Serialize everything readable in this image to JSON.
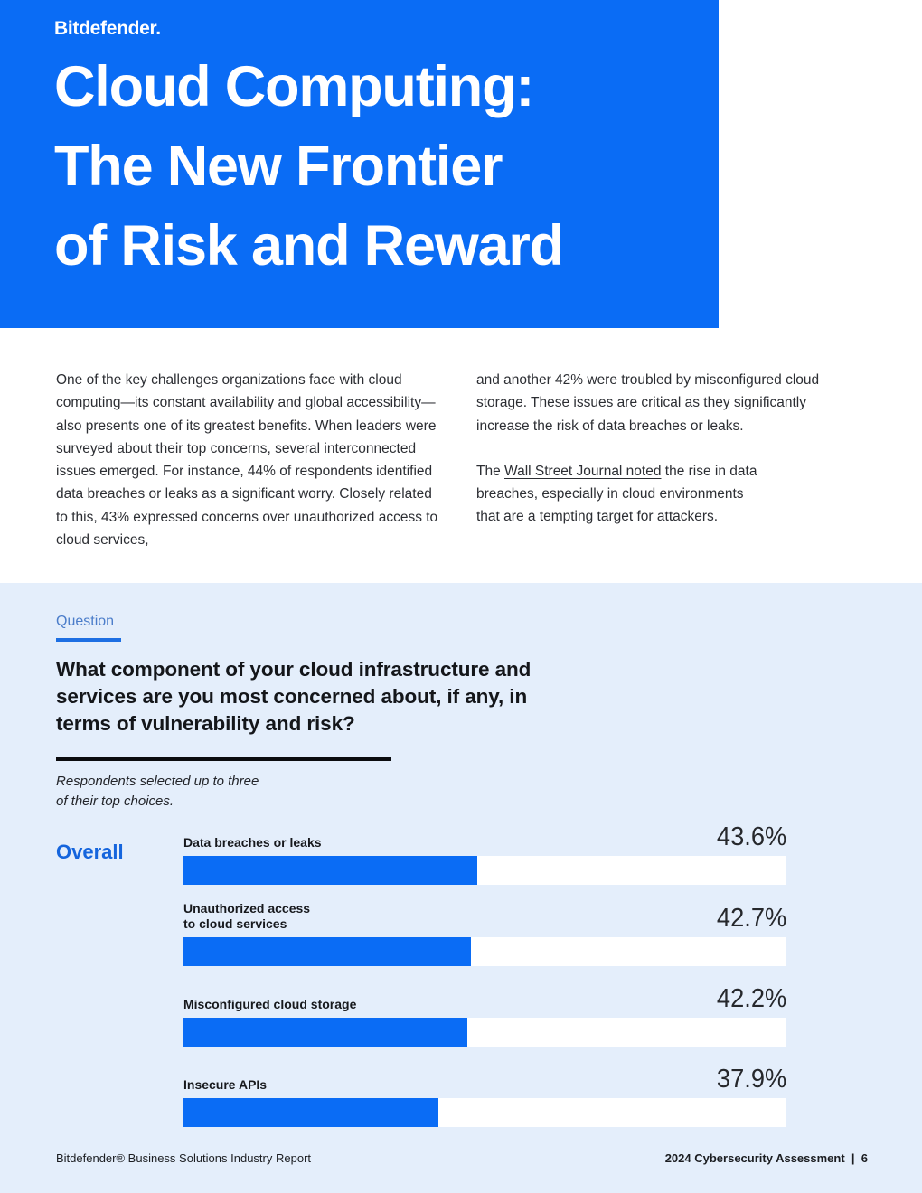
{
  "brand": {
    "logo": "Bitdefender."
  },
  "header": {
    "title_lines": [
      "Cloud Computing:",
      "The New Frontier",
      "of Risk and Reward"
    ]
  },
  "intro": {
    "left": "One of the key challenges organizations face with cloud computing—its constant availability and global accessibility—also presents one of its greatest benefits. When leaders were surveyed about their top concerns, several interconnected issues emerged. For instance, 44% of respondents identified data breaches or leaks as a significant worry. Closely related to this, 43% expressed concerns over unauthorized access to cloud services,",
    "right_p1": "and another 42% were troubled by misconfigured cloud storage. These issues are critical as they significantly increase the risk of data breaches or leaks.",
    "right_p2": {
      "prefix": "The ",
      "link": "Wall Street Journal noted",
      "after_link": " the rise in data",
      "line2": "breaches, especially in cloud environments",
      "line3": "that are a tempting target for attackers."
    }
  },
  "question": {
    "label": "Question",
    "text": "What component of your cloud infrastructure and services are you most concerned about, if any, in terms of vulnerability and risk?",
    "note_lines": [
      "Respondents selected up to three",
      "of their top choices."
    ]
  },
  "chart_data": {
    "type": "bar",
    "orientation": "horizontal",
    "group_label": "Overall",
    "categories": [
      "Data breaches or leaks",
      "Unauthorized access to cloud services",
      "Misconfigured cloud storage",
      "Insecure APIs"
    ],
    "label_lines": [
      [
        "Data breaches or leaks"
      ],
      [
        "Unauthorized access",
        "to cloud services"
      ],
      [
        "Misconfigured cloud storage"
      ],
      [
        "Insecure APIs"
      ]
    ],
    "values": [
      43.6,
      42.7,
      42.2,
      37.9
    ],
    "value_labels": [
      "43.6%",
      "42.7%",
      "42.2%",
      "37.9%"
    ],
    "axis_max": 89.5,
    "bar_color": "#0a6cf5",
    "track_color": "#ffffff",
    "grid": false,
    "legend": false
  },
  "footer": {
    "left": "Bitdefender® Business Solutions Industry Report",
    "right": "2024 Cybersecurity Assessment  |  6"
  },
  "colors": {
    "brand_blue": "#0a6cf5",
    "section_bg": "#e4eefb",
    "eyebrow_blue": "#4b7dca",
    "eyebrow_underline": "#1d6fe3",
    "overall_blue": "#1565dd",
    "body_text": "#2c2e33"
  }
}
